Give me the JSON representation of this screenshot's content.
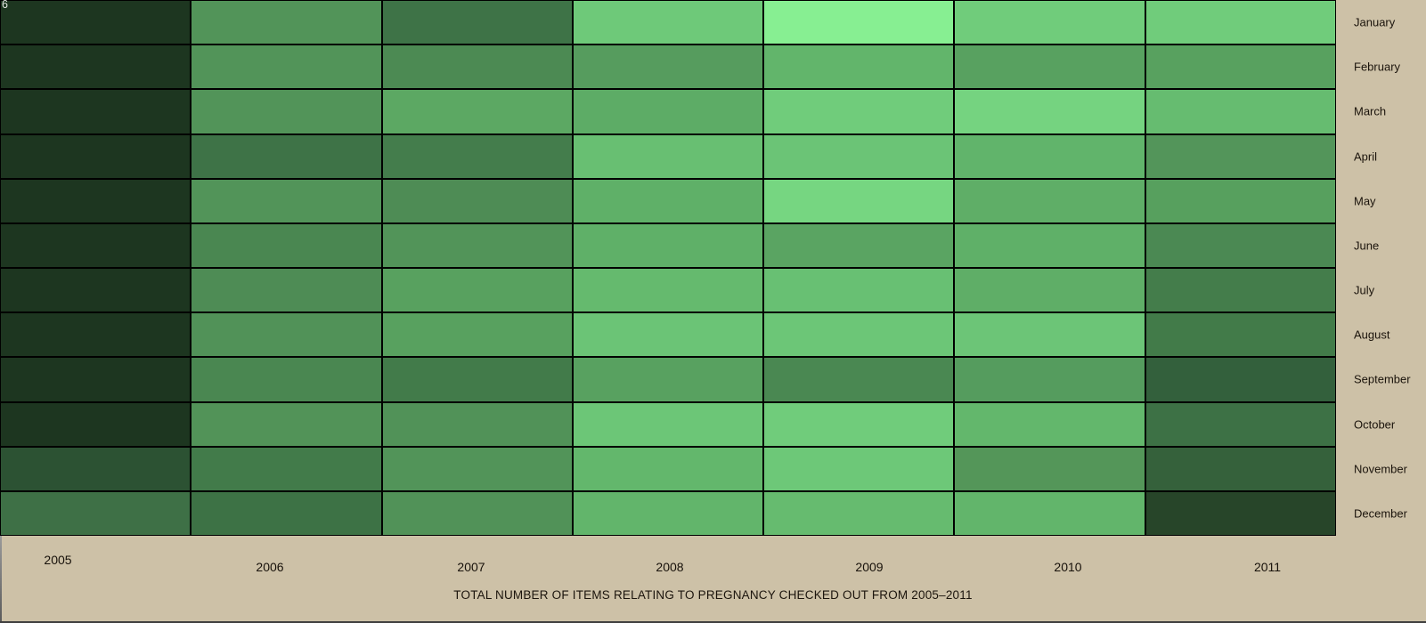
{
  "page": {
    "background_color": "#cdc1a7",
    "grid_line_color": "#000000"
  },
  "overlay": {
    "top_left_text": "6"
  },
  "chart_data": {
    "type": "heatmap",
    "title": "TOTAL NUMBER OF ITEMS RELATING TO PREGNANCY CHECKED OUT FROM 2005–2011",
    "rows": [
      "January",
      "February",
      "March",
      "April",
      "May",
      "June",
      "July",
      "August",
      "September",
      "October",
      "November",
      "December"
    ],
    "columns": [
      "2005",
      "2006",
      "2007",
      "2008",
      "2009",
      "2010",
      "2011"
    ],
    "value_encoding": "color_intensity",
    "legend_position": "none",
    "cell_colors": [
      [
        "#1d3620",
        "#529459",
        "#3e7347",
        "#6ec979",
        "#87ef92",
        "#70cc7b",
        "#70cc7b"
      ],
      [
        "#1d3620",
        "#529459",
        "#4c8a53",
        "#569c5e",
        "#62b56b",
        "#58a160",
        "#58a15f"
      ],
      [
        "#1d3620",
        "#529459",
        "#5ca863",
        "#5dac66",
        "#70cc7b",
        "#75d380",
        "#66bc70"
      ],
      [
        "#1d3620",
        "#3e7347",
        "#447d4c",
        "#68bf72",
        "#6bc476",
        "#61b46b",
        "#53955a"
      ],
      [
        "#1d3620",
        "#529459",
        "#4e8c55",
        "#5fb068",
        "#76d681",
        "#5fae67",
        "#57a05e"
      ],
      [
        "#1d3620",
        "#4a8751",
        "#529459",
        "#5fb068",
        "#5aa462",
        "#5fb068",
        "#4b8953"
      ],
      [
        "#1d3620",
        "#4e8c55",
        "#58a15f",
        "#65ba6e",
        "#68c073",
        "#5fae67",
        "#447d4b"
      ],
      [
        "#1d3620",
        "#519258",
        "#58a15f",
        "#6bc476",
        "#6cc677",
        "#6cc577",
        "#427b49"
      ],
      [
        "#1d3620",
        "#4a8751",
        "#427b4a",
        "#58a160",
        "#4a8852",
        "#559c5e",
        "#33603c"
      ],
      [
        "#1d3620",
        "#529358",
        "#519258",
        "#6cc677",
        "#70cc7b",
        "#63b76c",
        "#3d7145"
      ],
      [
        "#2c5233",
        "#427b4a",
        "#529459",
        "#63b76c",
        "#6dc878",
        "#549659",
        "#35613b"
      ],
      [
        "#3e7046",
        "#3d7245",
        "#519258",
        "#62b56b",
        "#66bb6f",
        "#62b56b",
        "#274529"
      ]
    ]
  }
}
